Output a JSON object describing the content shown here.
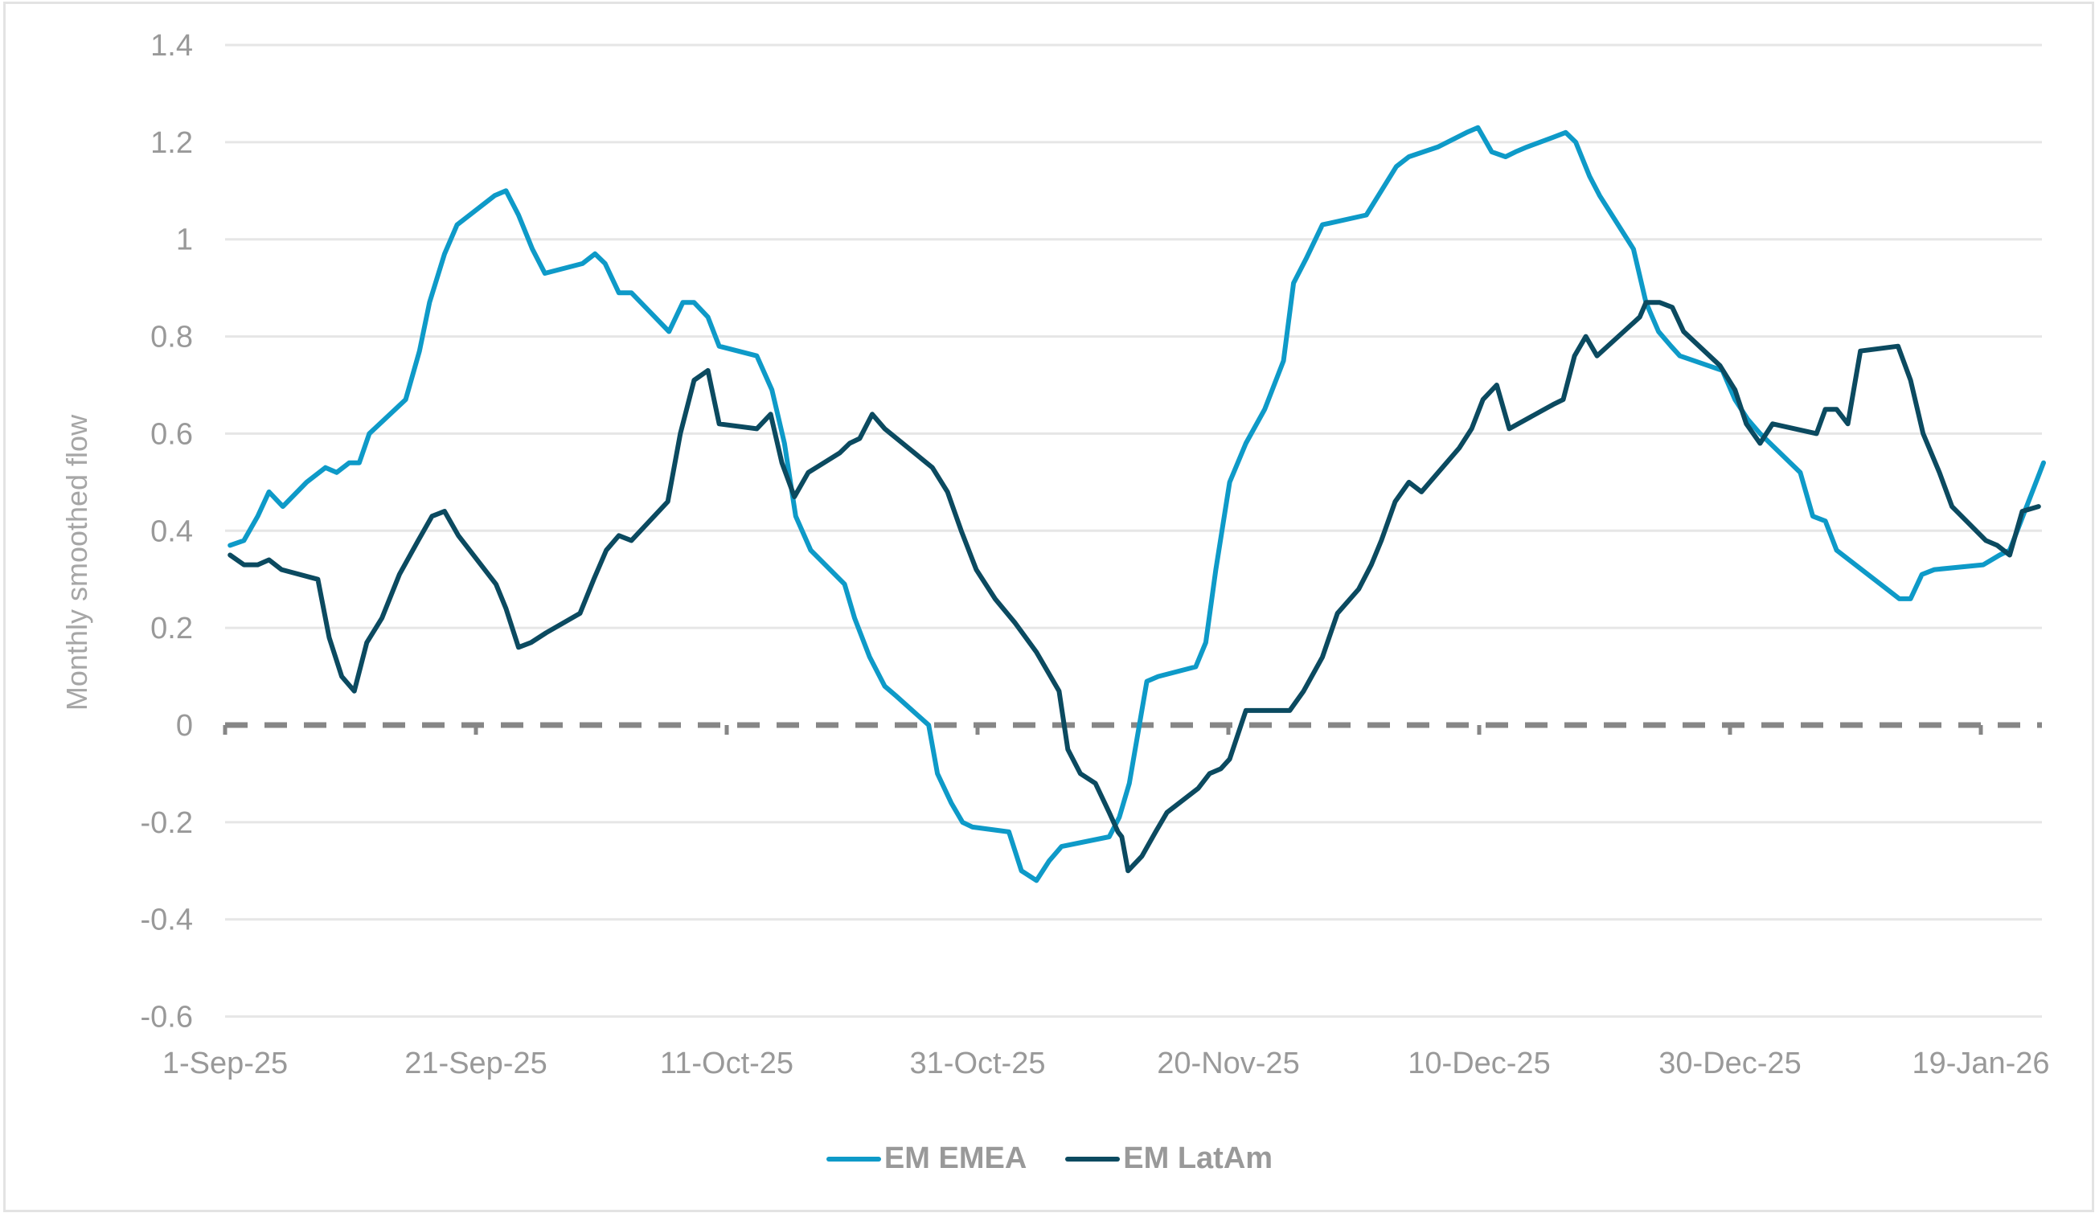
{
  "chart_data": {
    "type": "line",
    "title": "",
    "xlabel": "",
    "ylabel": "Monthly smoothed flow",
    "ylim": [
      -0.6,
      1.4
    ],
    "yticks": [
      "1.4",
      "1.2",
      "1",
      "0.8",
      "0.6",
      "0.4",
      "0.2",
      "0",
      "-0.2",
      "-0.4",
      "-0.6"
    ],
    "ytick_values": [
      1.4,
      1.2,
      1.0,
      0.8,
      0.6,
      0.4,
      0.2,
      0,
      -0.2,
      -0.4,
      -0.6
    ],
    "xticks": [
      "1-Sep-25",
      "21-Sep-25",
      "11-Oct-25",
      "31-Oct-25",
      "20-Nov-25",
      "10-Dec-25",
      "30-Dec-25",
      "19-Jan-26"
    ],
    "xtick_days": [
      0,
      20,
      40,
      60,
      80,
      100,
      120,
      140
    ],
    "x_range_days": [
      0,
      145
    ],
    "x_unit": "days since 1-Sep-25",
    "grid": "horizontal",
    "zero_line": "dashed",
    "legend_position": "bottom",
    "series": [
      {
        "name": "EM EMEA",
        "color": "#0E9AC8",
        "x": [
          0.4,
          1.5,
          2.6,
          3.5,
          4.6,
          6.5,
          8.0,
          8.9,
          9.9,
          10.7,
          11.5,
          14.4,
          15.5,
          16.3,
          17.5,
          18.5,
          20.5,
          21.5,
          22.4,
          23.4,
          24.5,
          25.5,
          28.5,
          29.5,
          30.3,
          31.4,
          32.4,
          35.4,
          36.5,
          37.4,
          38.5,
          39.4,
          42.4,
          43.6,
          44.6,
          45.5,
          46.7,
          49.4,
          50.2,
          51.4,
          52.6,
          53.5,
          56.1,
          56.8,
          57.9,
          58.8,
          59.6,
          62.5,
          63.5,
          64.7,
          65.7,
          66.7,
          70.5,
          71.3,
          72.1,
          73.5,
          74.4,
          77.4,
          78.2,
          79.0,
          80.1,
          81.4,
          82.9,
          84.4,
          85.2,
          86.2,
          87.5,
          91.0,
          92.2,
          93.4,
          94.4,
          96.7,
          99.0,
          99.9,
          101.0,
          102.1,
          102.9,
          103.8,
          105.9,
          106.9,
          107.7,
          108.8,
          109.6,
          112.3,
          113.3,
          114.3,
          115.3,
          116.0,
          119.4,
          120.4,
          121.4,
          122.4,
          125.6,
          126.6,
          127.6,
          128.5,
          132.5,
          133.5,
          134.4,
          135.3,
          136.3,
          140.2,
          141.5,
          142.3,
          145.0
        ],
        "values": [
          0.37,
          0.38,
          0.43,
          0.48,
          0.45,
          0.5,
          0.53,
          0.52,
          0.54,
          0.54,
          0.6,
          0.67,
          0.77,
          0.87,
          0.97,
          1.03,
          1.07,
          1.09,
          1.1,
          1.05,
          0.98,
          0.93,
          0.95,
          0.97,
          0.95,
          0.89,
          0.89,
          0.81,
          0.87,
          0.87,
          0.84,
          0.78,
          0.76,
          0.69,
          0.58,
          0.43,
          0.36,
          0.29,
          0.22,
          0.14,
          0.08,
          0.06,
          0.0,
          -0.1,
          -0.16,
          -0.2,
          -0.21,
          -0.22,
          -0.3,
          -0.32,
          -0.28,
          -0.25,
          -0.23,
          -0.19,
          -0.12,
          0.09,
          0.1,
          0.12,
          0.17,
          0.32,
          0.5,
          0.58,
          0.65,
          0.75,
          0.91,
          0.96,
          1.03,
          1.05,
          1.1,
          1.15,
          1.17,
          1.19,
          1.22,
          1.23,
          1.18,
          1.17,
          1.18,
          1.19,
          1.21,
          1.22,
          1.2,
          1.13,
          1.09,
          0.98,
          0.87,
          0.81,
          0.78,
          0.76,
          0.73,
          0.67,
          0.63,
          0.6,
          0.52,
          0.43,
          0.42,
          0.36,
          0.28,
          0.26,
          0.26,
          0.31,
          0.32,
          0.33,
          0.35,
          0.36,
          0.54
        ]
      },
      {
        "name": "EM LatAm",
        "color": "#0B4A60",
        "x": [
          0.4,
          1.5,
          2.6,
          3.5,
          4.5,
          7.4,
          8.3,
          9.3,
          10.3,
          11.3,
          12.5,
          13.9,
          15.4,
          16.5,
          17.5,
          18.6,
          21.6,
          22.4,
          23.4,
          24.4,
          25.6,
          28.3,
          29.4,
          30.4,
          31.4,
          32.4,
          35.3,
          36.3,
          37.4,
          38.5,
          39.4,
          42.4,
          43.5,
          44.4,
          45.4,
          46.5,
          49.0,
          49.8,
          50.6,
          51.6,
          52.6,
          56.4,
          57.6,
          58.7,
          59.9,
          61.4,
          63.0,
          64.7,
          66.5,
          67.2,
          68.2,
          69.4,
          70.5,
          71.2,
          71.5,
          72.0,
          73.1,
          74.2,
          75.1,
          77.6,
          78.5,
          79.4,
          80.1,
          81.4,
          84.0,
          84.9,
          86.0,
          87.5,
          88.7,
          90.4,
          91.4,
          92.2,
          93.3,
          94.4,
          95.4,
          98.4,
          99.4,
          100.3,
          101.4,
          102.4,
          105.9,
          106.7,
          107.6,
          108.5,
          109.4,
          112.8,
          113.3,
          114.4,
          115.4,
          116.3,
          119.2,
          120.4,
          121.3,
          122.4,
          123.4,
          126.9,
          127.6,
          128.5,
          129.4,
          130.4,
          133.4,
          134.4,
          135.4,
          136.7,
          137.7,
          140.4,
          141.3,
          142.3,
          143.3,
          144.6
        ],
        "values": [
          0.35,
          0.33,
          0.33,
          0.34,
          0.32,
          0.3,
          0.18,
          0.1,
          0.07,
          0.17,
          0.22,
          0.31,
          0.38,
          0.43,
          0.44,
          0.39,
          0.29,
          0.24,
          0.16,
          0.17,
          0.19,
          0.23,
          0.3,
          0.36,
          0.39,
          0.38,
          0.46,
          0.6,
          0.71,
          0.73,
          0.62,
          0.61,
          0.64,
          0.54,
          0.47,
          0.52,
          0.56,
          0.58,
          0.59,
          0.64,
          0.61,
          0.53,
          0.48,
          0.4,
          0.32,
          0.26,
          0.21,
          0.15,
          0.07,
          -0.05,
          -0.1,
          -0.12,
          -0.18,
          -0.22,
          -0.23,
          -0.3,
          -0.27,
          -0.22,
          -0.18,
          -0.13,
          -0.1,
          -0.09,
          -0.07,
          0.03,
          0.03,
          0.03,
          0.07,
          0.14,
          0.23,
          0.28,
          0.33,
          0.38,
          0.46,
          0.5,
          0.48,
          0.57,
          0.61,
          0.67,
          0.7,
          0.61,
          0.66,
          0.67,
          0.76,
          0.8,
          0.76,
          0.84,
          0.87,
          0.87,
          0.86,
          0.81,
          0.74,
          0.69,
          0.62,
          0.58,
          0.62,
          0.6,
          0.65,
          0.65,
          0.62,
          0.77,
          0.78,
          0.71,
          0.6,
          0.52,
          0.45,
          0.38,
          0.37,
          0.35,
          0.44,
          0.45
        ]
      }
    ]
  },
  "axis": {
    "y_title": "Monthly smoothed flow"
  },
  "legend": {
    "items": [
      {
        "label": "EM EMEA",
        "color": "#0E9AC8"
      },
      {
        "label": "EM LatAm",
        "color": "#0B4A60"
      }
    ]
  }
}
